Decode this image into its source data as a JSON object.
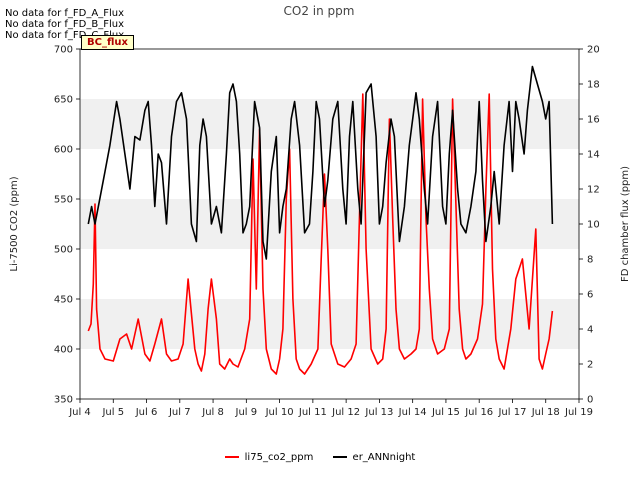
{
  "chart_data": {
    "type": "line",
    "title": "CO2 in ppm",
    "ylabel": "Li-7500 CO2 (ppm)",
    "y2label": "FD chamber flux (ppm)",
    "ylim": [
      350,
      700
    ],
    "y2lim": [
      0,
      20
    ],
    "xlim": [
      4.0,
      19.0
    ],
    "x_ticks": [
      4,
      5,
      6,
      7,
      8,
      9,
      10,
      11,
      12,
      13,
      14,
      15,
      16,
      17,
      18,
      19
    ],
    "x_tick_labels": [
      "Jul 4",
      "Jul 5",
      "Jul 6",
      "Jul 7",
      "Jul 8",
      "Jul 9",
      "Jul 10",
      "Jul 11",
      "Jul 12",
      "Jul 13",
      "Jul 14",
      "Jul 15",
      "Jul 16",
      "Jul 17",
      "Jul 18",
      "Jul 19"
    ],
    "y_ticks": [
      350,
      400,
      450,
      500,
      550,
      600,
      650,
      700
    ],
    "y2_ticks": [
      0,
      2,
      4,
      6,
      8,
      10,
      12,
      14,
      16,
      18,
      20
    ],
    "grid": "horizontal bands",
    "legend_position": "bottom",
    "series": [
      {
        "name": "li75_co2_ppm",
        "axis": "left",
        "color": "#ff0000",
        "x": [
          4.25,
          4.33,
          4.4,
          4.45,
          4.5,
          4.6,
          4.75,
          5.0,
          5.2,
          5.4,
          5.55,
          5.75,
          5.95,
          6.1,
          6.25,
          6.45,
          6.6,
          6.75,
          6.95,
          7.1,
          7.25,
          7.45,
          7.55,
          7.65,
          7.75,
          7.85,
          7.95,
          8.1,
          8.2,
          8.35,
          8.5,
          8.6,
          8.75,
          8.95,
          9.1,
          9.2,
          9.3,
          9.4,
          9.5,
          9.6,
          9.75,
          9.9,
          10.0,
          10.1,
          10.2,
          10.3,
          10.4,
          10.5,
          10.6,
          10.75,
          10.95,
          11.15,
          11.25,
          11.35,
          11.45,
          11.55,
          11.75,
          11.95,
          12.15,
          12.3,
          12.4,
          12.5,
          12.6,
          12.75,
          12.95,
          13.1,
          13.2,
          13.3,
          13.4,
          13.5,
          13.6,
          13.75,
          13.95,
          14.1,
          14.2,
          14.3,
          14.4,
          14.5,
          14.6,
          14.75,
          14.95,
          15.1,
          15.2,
          15.3,
          15.4,
          15.5,
          15.6,
          15.75,
          15.95,
          16.1,
          16.2,
          16.3,
          16.4,
          16.5,
          16.6,
          16.75,
          16.95,
          17.1,
          17.3,
          17.5,
          17.7,
          17.8,
          17.9,
          18.0,
          18.1,
          18.2
        ],
        "values": [
          418,
          425,
          465,
          545,
          440,
          400,
          390,
          388,
          410,
          415,
          400,
          430,
          395,
          388,
          405,
          430,
          395,
          388,
          390,
          405,
          470,
          400,
          385,
          378,
          395,
          440,
          470,
          430,
          385,
          380,
          390,
          385,
          382,
          400,
          430,
          590,
          460,
          620,
          460,
          400,
          380,
          375,
          390,
          420,
          550,
          600,
          450,
          390,
          380,
          375,
          385,
          400,
          490,
          575,
          500,
          405,
          385,
          382,
          390,
          405,
          530,
          655,
          500,
          400,
          385,
          390,
          420,
          630,
          530,
          440,
          400,
          390,
          395,
          400,
          420,
          650,
          530,
          460,
          410,
          395,
          400,
          420,
          650,
          545,
          440,
          400,
          390,
          395,
          410,
          445,
          560,
          655,
          480,
          410,
          390,
          380,
          420,
          470,
          490,
          420,
          520,
          390,
          380,
          395,
          410,
          438
        ]
      },
      {
        "name": "er_ANNnight",
        "axis": "right",
        "color": "#000000",
        "x": [
          4.25,
          4.35,
          4.45,
          4.6,
          4.75,
          4.9,
          5.1,
          5.2,
          5.35,
          5.5,
          5.65,
          5.8,
          5.95,
          6.05,
          6.15,
          6.25,
          6.35,
          6.45,
          6.6,
          6.75,
          6.9,
          7.05,
          7.2,
          7.35,
          7.5,
          7.6,
          7.7,
          7.8,
          7.95,
          8.1,
          8.25,
          8.4,
          8.5,
          8.6,
          8.7,
          8.8,
          8.9,
          9.0,
          9.1,
          9.25,
          9.4,
          9.5,
          9.6,
          9.75,
          9.9,
          10.0,
          10.1,
          10.2,
          10.35,
          10.45,
          10.6,
          10.75,
          10.9,
          11.0,
          11.1,
          11.2,
          11.35,
          11.45,
          11.6,
          11.75,
          11.9,
          12.0,
          12.1,
          12.2,
          12.35,
          12.45,
          12.6,
          12.75,
          12.9,
          13.0,
          13.1,
          13.2,
          13.35,
          13.45,
          13.6,
          13.75,
          13.9,
          14.0,
          14.1,
          14.2,
          14.35,
          14.45,
          14.6,
          14.75,
          14.9,
          15.0,
          15.1,
          15.2,
          15.35,
          15.45,
          15.6,
          15.75,
          15.9,
          16.0,
          16.1,
          16.2,
          16.35,
          16.45,
          16.6,
          16.75,
          16.9,
          17.0,
          17.1,
          17.2,
          17.35,
          17.45,
          17.6,
          17.75,
          17.9,
          18.0,
          18.1,
          18.2
        ],
        "values": [
          10,
          11,
          10,
          11.5,
          13,
          14.5,
          17,
          16,
          14,
          12,
          15,
          14.8,
          16.5,
          17,
          14.5,
          11,
          14,
          13.5,
          10,
          15,
          17,
          17.5,
          16,
          10,
          9,
          14.5,
          16,
          15,
          10,
          11,
          9.5,
          14,
          17.5,
          18,
          17,
          14,
          9.5,
          10,
          11,
          17,
          15.5,
          9,
          8,
          13,
          15,
          9.5,
          11,
          12,
          16,
          17,
          14.5,
          9.5,
          10,
          13,
          17,
          16,
          11,
          12.5,
          16,
          17,
          12,
          10,
          15,
          17,
          12,
          10,
          17.5,
          18,
          15,
          10,
          11,
          13.5,
          16,
          15,
          9,
          11,
          14.5,
          16,
          17.5,
          16,
          12,
          10,
          15,
          17,
          11,
          10,
          14,
          16.5,
          12,
          10,
          9.5,
          11,
          13,
          17,
          12.5,
          9,
          11,
          13,
          10,
          14.5,
          17,
          13,
          17,
          16,
          14,
          16.5,
          19,
          18,
          17,
          16,
          17,
          10
        ]
      }
    ]
  },
  "notes": [
    "No data for f_FD_A_Flux",
    "No data for f_FD_B_Flux",
    "No data for f_FD_C_Flux"
  ],
  "badge_label": "BC_flux",
  "legend_items": [
    "li75_co2_ppm",
    "er_ANNnight"
  ]
}
